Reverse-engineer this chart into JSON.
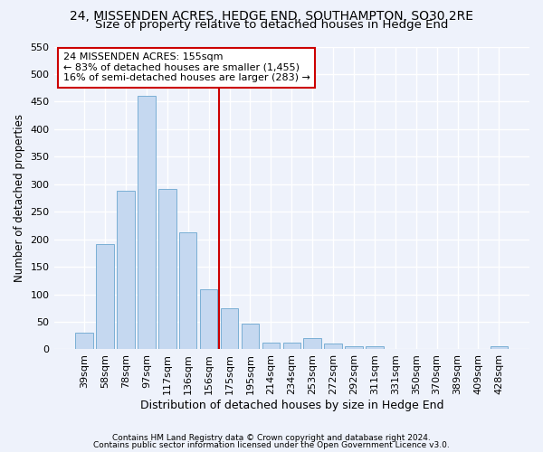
{
  "title": "24, MISSENDEN ACRES, HEDGE END, SOUTHAMPTON, SO30 2RE",
  "subtitle": "Size of property relative to detached houses in Hedge End",
  "xlabel": "Distribution of detached houses by size in Hedge End",
  "ylabel": "Number of detached properties",
  "categories": [
    "39sqm",
    "58sqm",
    "78sqm",
    "97sqm",
    "117sqm",
    "136sqm",
    "156sqm",
    "175sqm",
    "195sqm",
    "214sqm",
    "234sqm",
    "253sqm",
    "272sqm",
    "292sqm",
    "311sqm",
    "331sqm",
    "350sqm",
    "370sqm",
    "389sqm",
    "409sqm",
    "428sqm"
  ],
  "values": [
    30,
    192,
    288,
    460,
    292,
    213,
    109,
    74,
    47,
    13,
    12,
    21,
    10,
    5,
    6,
    0,
    0,
    0,
    0,
    0,
    5
  ],
  "bar_color": "#c5d8f0",
  "bar_edge_color": "#7aafd4",
  "vline_color": "#cc0000",
  "annotation_text": "24 MISSENDEN ACRES: 155sqm\n← 83% of detached houses are smaller (1,455)\n16% of semi-detached houses are larger (283) →",
  "annotation_box_color": "#ffffff",
  "annotation_box_edge": "#cc0000",
  "ylim": [
    0,
    550
  ],
  "yticks": [
    0,
    50,
    100,
    150,
    200,
    250,
    300,
    350,
    400,
    450,
    500,
    550
  ],
  "title_fontsize": 10,
  "subtitle_fontsize": 9.5,
  "xlabel_fontsize": 9,
  "ylabel_fontsize": 8.5,
  "tick_fontsize": 8,
  "annot_fontsize": 8,
  "footer_line1": "Contains HM Land Registry data © Crown copyright and database right 2024.",
  "footer_line2": "Contains public sector information licensed under the Open Government Licence v3.0.",
  "bg_color": "#eef2fb",
  "grid_color": "#ffffff"
}
